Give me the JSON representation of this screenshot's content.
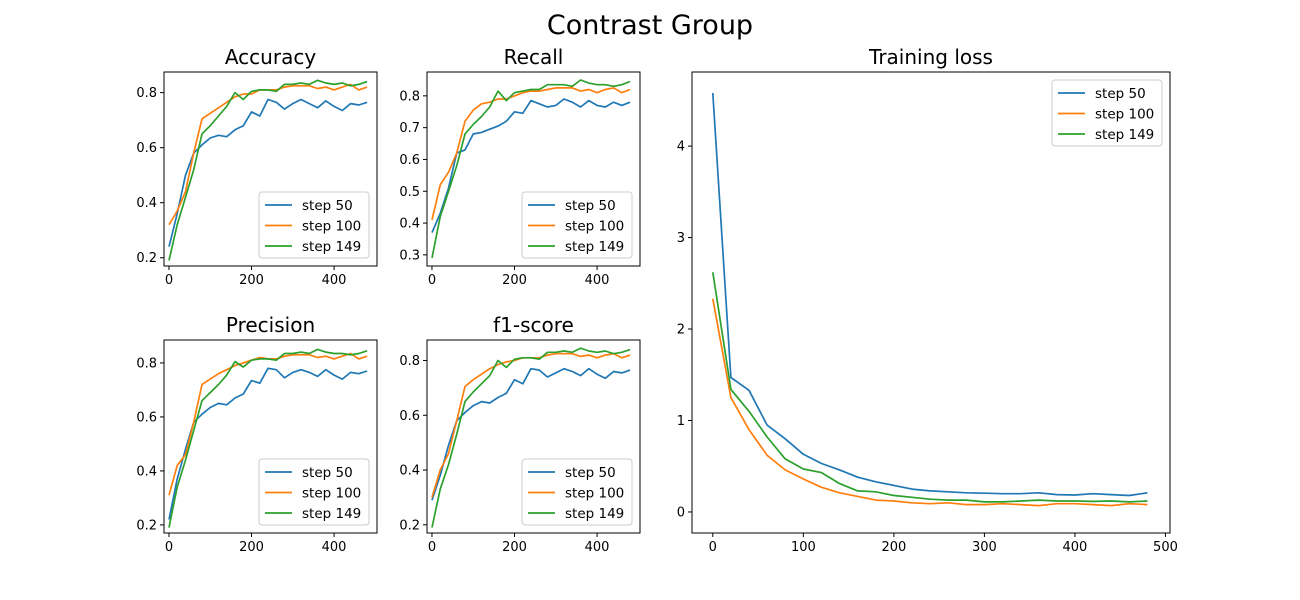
{
  "figure": {
    "title": "Contrast Group"
  },
  "colors": {
    "step 50": "#1f77b4",
    "step 100": "#ff7f0e",
    "step 149": "#2ca02c"
  },
  "chart_data": [
    {
      "type": "line",
      "title": "Accuracy",
      "xlabel": "",
      "ylabel": "",
      "xlim": [
        -12,
        504
      ],
      "ylim": [
        0.17,
        0.875
      ],
      "xticks": [
        0,
        200,
        400
      ],
      "xtick_labels": [
        "0",
        "200",
        "400"
      ],
      "yticks": [
        0.2,
        0.4,
        0.6,
        0.8
      ],
      "ytick_labels": [
        "0.2",
        "0.4",
        "0.6",
        "0.8"
      ],
      "grid": false,
      "legend_position": "lower-right",
      "x": [
        0,
        20,
        40,
        60,
        80,
        100,
        120,
        140,
        160,
        180,
        200,
        220,
        240,
        260,
        280,
        300,
        320,
        340,
        360,
        380,
        400,
        420,
        440,
        460,
        480
      ],
      "series": [
        {
          "name": "step 50",
          "values": [
            0.24,
            0.36,
            0.5,
            0.58,
            0.61,
            0.635,
            0.645,
            0.64,
            0.665,
            0.68,
            0.73,
            0.715,
            0.775,
            0.765,
            0.74,
            0.76,
            0.775,
            0.76,
            0.745,
            0.77,
            0.75,
            0.735,
            0.76,
            0.755,
            0.765
          ]
        },
        {
          "name": "step 100",
          "values": [
            0.32,
            0.37,
            0.44,
            0.58,
            0.705,
            0.725,
            0.745,
            0.765,
            0.785,
            0.795,
            0.795,
            0.81,
            0.81,
            0.81,
            0.82,
            0.825,
            0.825,
            0.825,
            0.815,
            0.82,
            0.81,
            0.82,
            0.83,
            0.81,
            0.82
          ]
        },
        {
          "name": "step 149",
          "values": [
            0.19,
            0.32,
            0.42,
            0.52,
            0.65,
            0.68,
            0.715,
            0.75,
            0.8,
            0.775,
            0.805,
            0.81,
            0.81,
            0.805,
            0.83,
            0.83,
            0.835,
            0.83,
            0.845,
            0.835,
            0.83,
            0.835,
            0.825,
            0.83,
            0.84
          ]
        }
      ]
    },
    {
      "type": "line",
      "title": "Recall",
      "xlabel": "",
      "ylabel": "",
      "xlim": [
        -12,
        504
      ],
      "ylim": [
        0.265,
        0.875
      ],
      "xticks": [
        0,
        200,
        400
      ],
      "xtick_labels": [
        "0",
        "200",
        "400"
      ],
      "yticks": [
        0.3,
        0.4,
        0.5,
        0.6,
        0.7,
        0.8
      ],
      "ytick_labels": [
        "0.3",
        "0.4",
        "0.5",
        "0.6",
        "0.7",
        "0.8"
      ],
      "grid": false,
      "legend_position": "lower-right",
      "x": [
        0,
        20,
        40,
        60,
        80,
        100,
        120,
        140,
        160,
        180,
        200,
        220,
        240,
        260,
        280,
        300,
        320,
        340,
        360,
        380,
        400,
        420,
        440,
        460,
        480
      ],
      "series": [
        {
          "name": "step 50",
          "values": [
            0.37,
            0.43,
            0.51,
            0.62,
            0.63,
            0.68,
            0.685,
            0.695,
            0.705,
            0.72,
            0.75,
            0.745,
            0.785,
            0.775,
            0.765,
            0.77,
            0.79,
            0.78,
            0.765,
            0.785,
            0.77,
            0.765,
            0.78,
            0.77,
            0.78
          ]
        },
        {
          "name": "step 100",
          "values": [
            0.41,
            0.52,
            0.56,
            0.62,
            0.72,
            0.755,
            0.775,
            0.78,
            0.79,
            0.79,
            0.8,
            0.81,
            0.815,
            0.815,
            0.82,
            0.825,
            0.825,
            0.825,
            0.815,
            0.82,
            0.81,
            0.82,
            0.825,
            0.81,
            0.82
          ]
        },
        {
          "name": "step 149",
          "values": [
            0.29,
            0.42,
            0.5,
            0.58,
            0.68,
            0.71,
            0.735,
            0.765,
            0.815,
            0.785,
            0.81,
            0.815,
            0.82,
            0.82,
            0.835,
            0.835,
            0.835,
            0.83,
            0.85,
            0.84,
            0.835,
            0.835,
            0.83,
            0.835,
            0.845
          ]
        }
      ]
    },
    {
      "type": "line",
      "title": "Precision",
      "xlabel": "",
      "ylabel": "",
      "xlim": [
        -12,
        504
      ],
      "ylim": [
        0.17,
        0.885
      ],
      "xticks": [
        0,
        200,
        400
      ],
      "xtick_labels": [
        "0",
        "200",
        "400"
      ],
      "yticks": [
        0.2,
        0.4,
        0.6,
        0.8
      ],
      "ytick_labels": [
        "0.2",
        "0.4",
        "0.6",
        "0.8"
      ],
      "grid": false,
      "legend_position": "lower-right",
      "x": [
        0,
        20,
        40,
        60,
        80,
        100,
        120,
        140,
        160,
        180,
        200,
        220,
        240,
        260,
        280,
        300,
        320,
        340,
        360,
        380,
        400,
        420,
        440,
        460,
        480
      ],
      "series": [
        {
          "name": "step 50",
          "values": [
            0.22,
            0.37,
            0.48,
            0.58,
            0.61,
            0.635,
            0.65,
            0.645,
            0.67,
            0.685,
            0.735,
            0.725,
            0.78,
            0.775,
            0.745,
            0.765,
            0.775,
            0.765,
            0.75,
            0.775,
            0.755,
            0.74,
            0.765,
            0.76,
            0.77
          ]
        },
        {
          "name": "step 100",
          "values": [
            0.31,
            0.42,
            0.46,
            0.58,
            0.72,
            0.74,
            0.76,
            0.775,
            0.79,
            0.8,
            0.81,
            0.82,
            0.815,
            0.815,
            0.825,
            0.83,
            0.83,
            0.83,
            0.82,
            0.825,
            0.815,
            0.825,
            0.835,
            0.815,
            0.825
          ]
        },
        {
          "name": "step 149",
          "values": [
            0.19,
            0.34,
            0.44,
            0.55,
            0.66,
            0.69,
            0.72,
            0.755,
            0.805,
            0.785,
            0.81,
            0.815,
            0.815,
            0.81,
            0.835,
            0.835,
            0.84,
            0.835,
            0.85,
            0.84,
            0.835,
            0.835,
            0.83,
            0.835,
            0.845
          ]
        }
      ]
    },
    {
      "type": "line",
      "title": "f1-score",
      "xlabel": "",
      "ylabel": "",
      "xlim": [
        -12,
        504
      ],
      "ylim": [
        0.17,
        0.875
      ],
      "xticks": [
        0,
        200,
        400
      ],
      "xtick_labels": [
        "0",
        "200",
        "400"
      ],
      "yticks": [
        0.2,
        0.4,
        0.6,
        0.8
      ],
      "ytick_labels": [
        "0.2",
        "0.4",
        "0.6",
        "0.8"
      ],
      "grid": false,
      "legend_position": "lower-right",
      "x": [
        0,
        20,
        40,
        60,
        80,
        100,
        120,
        140,
        160,
        180,
        200,
        220,
        240,
        260,
        280,
        300,
        320,
        340,
        360,
        380,
        400,
        420,
        440,
        460,
        480
      ],
      "series": [
        {
          "name": "step 50",
          "values": [
            0.29,
            0.38,
            0.49,
            0.58,
            0.61,
            0.635,
            0.65,
            0.645,
            0.665,
            0.68,
            0.73,
            0.715,
            0.77,
            0.765,
            0.74,
            0.755,
            0.77,
            0.76,
            0.745,
            0.77,
            0.75,
            0.735,
            0.76,
            0.755,
            0.765
          ]
        },
        {
          "name": "step 100",
          "values": [
            0.3,
            0.4,
            0.46,
            0.58,
            0.705,
            0.73,
            0.75,
            0.77,
            0.785,
            0.795,
            0.8,
            0.81,
            0.81,
            0.81,
            0.82,
            0.825,
            0.825,
            0.825,
            0.815,
            0.82,
            0.81,
            0.82,
            0.825,
            0.81,
            0.82
          ]
        },
        {
          "name": "step 149",
          "values": [
            0.19,
            0.33,
            0.42,
            0.53,
            0.65,
            0.685,
            0.715,
            0.745,
            0.8,
            0.775,
            0.805,
            0.81,
            0.81,
            0.805,
            0.83,
            0.83,
            0.835,
            0.83,
            0.845,
            0.835,
            0.83,
            0.835,
            0.825,
            0.83,
            0.84
          ]
        }
      ]
    },
    {
      "type": "line",
      "title": "Training loss",
      "xlabel": "",
      "ylabel": "",
      "xlim": [
        -23,
        505
      ],
      "ylim": [
        -0.23,
        4.81
      ],
      "xticks": [
        0,
        100,
        200,
        300,
        400,
        500
      ],
      "xtick_labels": [
        "0",
        "100",
        "200",
        "300",
        "400",
        "500"
      ],
      "yticks": [
        0,
        1,
        2,
        3,
        4
      ],
      "ytick_labels": [
        "0",
        "1",
        "2",
        "3",
        "4"
      ],
      "grid": false,
      "legend_position": "upper-right",
      "x": [
        0,
        20,
        40,
        60,
        80,
        100,
        120,
        140,
        160,
        180,
        200,
        220,
        240,
        260,
        280,
        300,
        320,
        340,
        360,
        380,
        400,
        420,
        440,
        460,
        480
      ],
      "series": [
        {
          "name": "step 50",
          "values": [
            4.58,
            1.47,
            1.33,
            0.95,
            0.8,
            0.63,
            0.53,
            0.46,
            0.38,
            0.33,
            0.29,
            0.25,
            0.23,
            0.22,
            0.21,
            0.205,
            0.2,
            0.2,
            0.21,
            0.19,
            0.185,
            0.2,
            0.19,
            0.18,
            0.21
          ]
        },
        {
          "name": "step 100",
          "values": [
            2.33,
            1.25,
            0.9,
            0.62,
            0.46,
            0.36,
            0.27,
            0.21,
            0.17,
            0.13,
            0.12,
            0.1,
            0.09,
            0.1,
            0.08,
            0.08,
            0.09,
            0.08,
            0.07,
            0.09,
            0.09,
            0.08,
            0.07,
            0.09,
            0.08
          ]
        },
        {
          "name": "step 149",
          "values": [
            2.62,
            1.34,
            1.1,
            0.82,
            0.58,
            0.47,
            0.43,
            0.31,
            0.23,
            0.22,
            0.18,
            0.16,
            0.14,
            0.13,
            0.13,
            0.11,
            0.11,
            0.12,
            0.13,
            0.12,
            0.12,
            0.115,
            0.12,
            0.11,
            0.12
          ]
        }
      ]
    }
  ]
}
